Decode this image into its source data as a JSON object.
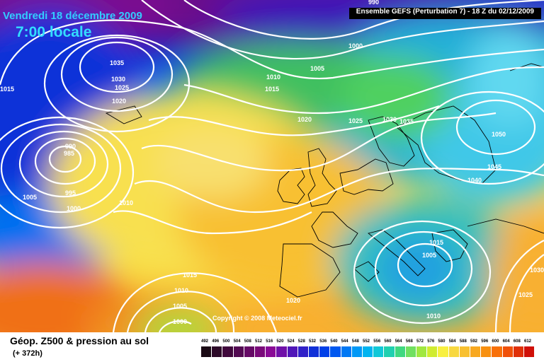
{
  "header": {
    "date": "Vendredi 18 décembre 2009",
    "time": "7:00 locale",
    "model": "Ensemble GEFS (Perturbation 7)  -  18 Z du 02/12/2009"
  },
  "copyright": "Copyright © 2008 Meteociel.fr",
  "footer": {
    "title": "Géop. Z500 & pression au sol",
    "lead": "(+ 372h)"
  },
  "legend": {
    "values": [
      "492",
      "496",
      "500",
      "504",
      "508",
      "512",
      "516",
      "520",
      "524",
      "528",
      "532",
      "536",
      "540",
      "544",
      "548",
      "552",
      "556",
      "560",
      "564",
      "568",
      "572",
      "576",
      "580",
      "584",
      "588",
      "592",
      "596",
      "600",
      "604",
      "608",
      "612"
    ],
    "colors": [
      "#1a0a14",
      "#2d0a28",
      "#40083c",
      "#530a52",
      "#660a66",
      "#7a0a7a",
      "#8a0a96",
      "#7010a8",
      "#5016b8",
      "#3020c8",
      "#1030d8",
      "#0040e8",
      "#0058f0",
      "#0078f4",
      "#0098f6",
      "#00b4f0",
      "#10c8d8",
      "#20d0b0",
      "#40d880",
      "#70e060",
      "#a0e840",
      "#d0ec30",
      "#f8f040",
      "#f8d840",
      "#f8c030",
      "#f8a820",
      "#f89010",
      "#f87008",
      "#f05008",
      "#e03008",
      "#d01008"
    ]
  },
  "isobars": [
    {
      "label": "990",
      "color": "#ffffff"
    },
    {
      "label": "1000",
      "color": "#ffffff"
    },
    {
      "label": "1005",
      "color": "#ffffff"
    },
    {
      "label": "1010",
      "color": "#ffffff"
    },
    {
      "label": "1015",
      "color": "#ffffff"
    },
    {
      "label": "1015",
      "color": "#ffffff"
    },
    {
      "label": "1035",
      "color": "#ffffff"
    },
    {
      "label": "1030",
      "color": "#ffffff"
    },
    {
      "label": "1025",
      "color": "#ffffff"
    },
    {
      "label": "1020",
      "color": "#ffffff"
    },
    {
      "label": "990",
      "color": "#ffffff"
    },
    {
      "label": "985",
      "color": "#ffffff"
    },
    {
      "label": "1005",
      "color": "#ffffff"
    },
    {
      "label": "995",
      "color": "#ffffff"
    },
    {
      "label": "1000",
      "color": "#ffffff"
    },
    {
      "label": "1010",
      "color": "#ffffff"
    },
    {
      "label": "1020",
      "color": "#ffffff"
    },
    {
      "label": "1025",
      "color": "#ffffff"
    },
    {
      "label": "1030",
      "color": "#ffffff"
    },
    {
      "label": "1035",
      "color": "#ffffff"
    },
    {
      "label": "1050",
      "color": "#ffffff"
    },
    {
      "label": "1045",
      "color": "#ffffff"
    },
    {
      "label": "1040",
      "color": "#ffffff"
    },
    {
      "label": "1015",
      "color": "#ffffff"
    },
    {
      "label": "1005",
      "color": "#ffffff"
    },
    {
      "label": "1015",
      "color": "#ffffff"
    },
    {
      "label": "1010",
      "color": "#ffffff"
    },
    {
      "label": "1005",
      "color": "#ffffff"
    },
    {
      "label": "1000",
      "color": "#ffffff"
    },
    {
      "label": "1020",
      "color": "#ffffff"
    },
    {
      "label": "1010",
      "color": "#ffffff"
    },
    {
      "label": "1025",
      "color": "#ffffff"
    },
    {
      "label": "1030",
      "color": "#ffffff"
    }
  ]
}
